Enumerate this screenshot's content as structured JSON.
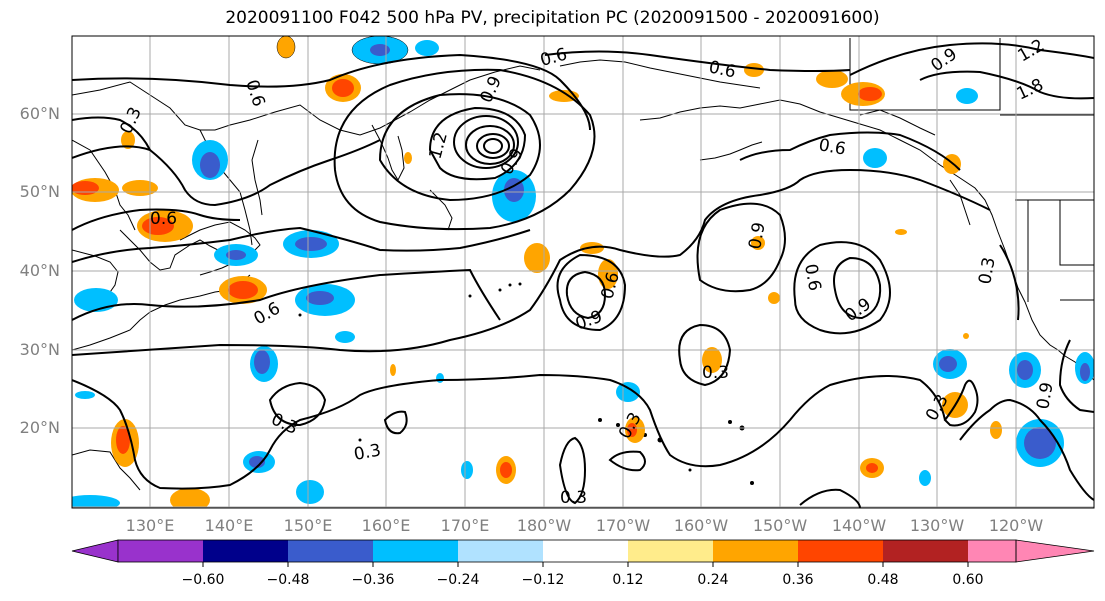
{
  "title": "2020091100 F042 500 hPa PV, precipitation PC (2020091500 - 2020091600)",
  "lat_labels": [
    "60°N",
    "50°N",
    "40°N",
    "30°N",
    "20°N"
  ],
  "lon_labels": [
    "130°E",
    "140°E",
    "150°E",
    "160°E",
    "170°E",
    "180°W",
    "170°W",
    "160°W",
    "150°W",
    "140°W",
    "130°W",
    "120°W"
  ],
  "colorbar": {
    "colors": [
      "#9932CC",
      "#00008B",
      "#3A5CCC",
      "#00BFFF",
      "#B0E2FF",
      "#FFFFFF",
      "#FFEC8B",
      "#FFA500",
      "#FF4500",
      "#B22222",
      "#FF86B4"
    ],
    "ticks": [
      "−0.60",
      "−0.48",
      "−0.36",
      "−0.24",
      "−0.12",
      "0.12",
      "0.24",
      "0.36",
      "0.48",
      "0.60"
    ]
  },
  "contour_labels": [
    "0.6",
    "0.3",
    "0.6",
    "0.9",
    "1.2",
    "0.6",
    "0.9",
    "0.6",
    "0.9",
    "1.2",
    "1.8",
    "0.6",
    "0.9",
    "0.6",
    "0.9",
    "0.6",
    "0.9",
    "0.3",
    "0.3",
    "0.3",
    "0.3",
    "0.3",
    "0.3",
    "0.3",
    "0.6",
    "0.9"
  ],
  "colors": {
    "orange": "#FFA500",
    "red": "#FF4500",
    "yellow": "#FFEC8B",
    "blue": "#3A5CCC",
    "cyan": "#00BFFF",
    "lightblue": "#B0E2FF",
    "grid": "#A9A9A9",
    "axis_label": "#808080"
  }
}
